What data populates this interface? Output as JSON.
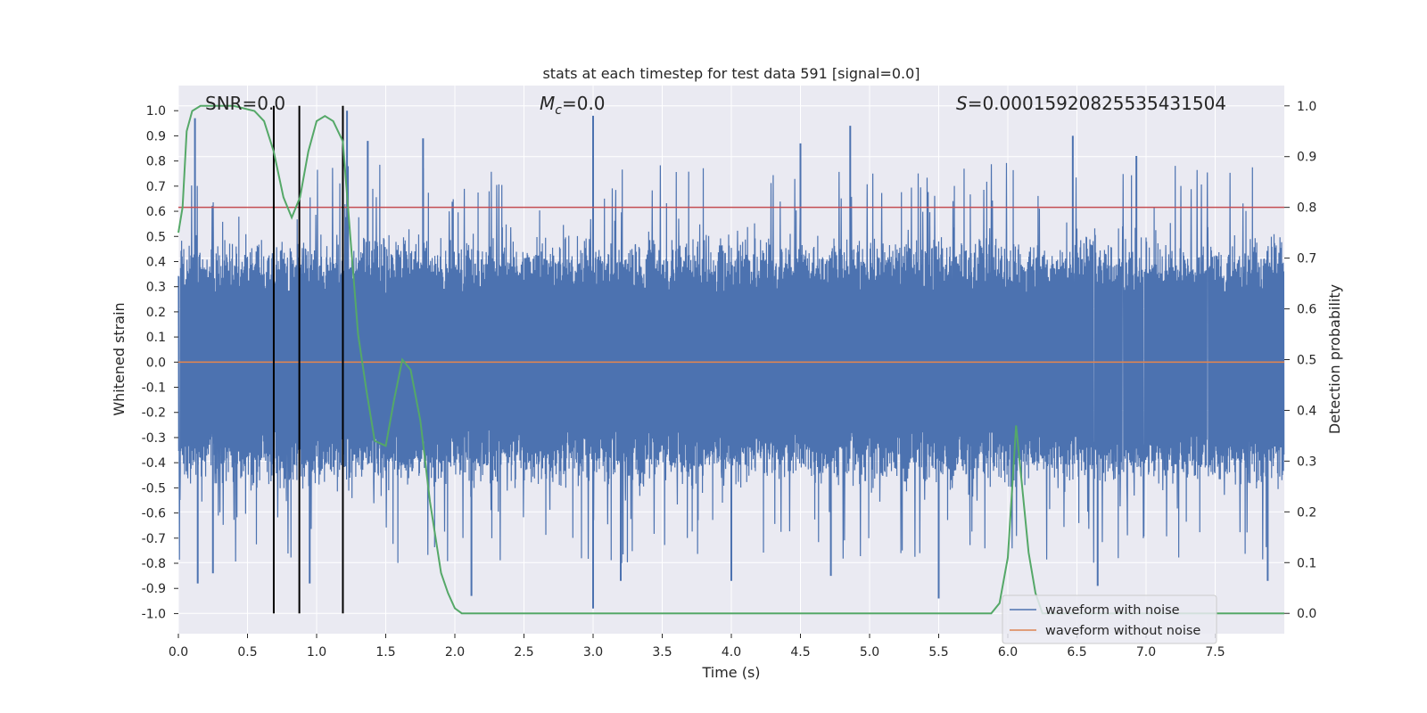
{
  "chart_data": {
    "type": "line",
    "title": "stats at each timestep for test data 591 [signal=0.0]",
    "xlabel": "Time (s)",
    "ylabel_left": "Whitened strain",
    "ylabel_right": "Detection probability",
    "xlim": [
      0.0,
      8.0
    ],
    "ylim_left": [
      -1.08,
      1.1
    ],
    "ylim_right": [
      -0.04,
      1.04
    ],
    "x_ticks": [
      0.0,
      0.5,
      1.0,
      1.5,
      2.0,
      2.5,
      3.0,
      3.5,
      4.0,
      4.5,
      5.0,
      5.5,
      6.0,
      6.5,
      7.0,
      7.5
    ],
    "x_tick_labels": [
      "0.0",
      "0.5",
      "1.0",
      "1.5",
      "2.0",
      "2.5",
      "3.0",
      "3.5",
      "4.0",
      "4.5",
      "5.0",
      "5.5",
      "6.0",
      "6.5",
      "7.0",
      "7.5"
    ],
    "y_left_ticks": [
      1.0,
      0.9,
      0.8,
      0.7,
      0.6,
      0.5,
      0.4,
      0.3,
      0.2,
      0.1,
      0.0,
      -0.1,
      -0.2,
      -0.3,
      -0.4,
      -0.5,
      -0.6,
      -0.7,
      -0.8,
      -0.9,
      -1.0
    ],
    "y_left_tick_labels": [
      "1.0",
      "0.9",
      "0.8",
      "0.7",
      "0.6",
      "0.5",
      "0.4",
      "0.3",
      "0.2",
      "0.1",
      "0.0",
      "-0.1",
      "-0.2",
      "-0.3",
      "-0.4",
      "-0.5",
      "-0.6",
      "-0.7",
      "-0.8",
      "-0.9",
      "-1.0"
    ],
    "y_right_ticks": [
      1.0,
      0.9,
      0.8,
      0.7,
      0.6,
      0.5,
      0.4,
      0.3,
      0.2,
      0.1,
      0.0
    ],
    "y_right_tick_labels": [
      "1.0",
      "0.9",
      "0.8",
      "0.7",
      "0.6",
      "0.5",
      "0.4",
      "0.3",
      "0.2",
      "0.1",
      "0.0"
    ],
    "annotations": {
      "snr": "SNR=0.0",
      "mc_symbol": "M",
      "mc_sub": "c",
      "mc_value": "=0.0",
      "s_symbol": "S",
      "s_value": "=0.00015920825535431504"
    },
    "threshold": {
      "value": 0.8,
      "color": "#c44e52"
    },
    "vertical_markers": [
      0.69,
      0.875,
      1.19
    ],
    "series": [
      {
        "name": "waveform with noise",
        "axis": "left",
        "color": "#4c72b0",
        "sample_rate": 512,
        "typical_abs_range": [
          0.3,
          0.45
        ],
        "peak_spikes": [
          {
            "x": 0.12,
            "y": 0.97
          },
          {
            "x": 1.22,
            "y": 1.0
          },
          {
            "x": 1.37,
            "y": 0.88
          },
          {
            "x": 1.77,
            "y": 0.89
          },
          {
            "x": 3.0,
            "y": 0.98
          },
          {
            "x": 4.5,
            "y": 0.87
          },
          {
            "x": 4.86,
            "y": 0.94
          },
          {
            "x": 6.47,
            "y": 0.9
          },
          {
            "x": 6.93,
            "y": 0.82
          },
          {
            "x": 0.14,
            "y": -0.88
          },
          {
            "x": 0.25,
            "y": -0.84
          },
          {
            "x": 0.95,
            "y": -0.88
          },
          {
            "x": 2.12,
            "y": -0.93
          },
          {
            "x": 3.0,
            "y": -0.98
          },
          {
            "x": 3.2,
            "y": -0.87
          },
          {
            "x": 4.0,
            "y": -0.87
          },
          {
            "x": 4.72,
            "y": -0.85
          },
          {
            "x": 5.5,
            "y": -0.94
          },
          {
            "x": 6.65,
            "y": -0.89
          },
          {
            "x": 7.88,
            "y": -0.87
          }
        ]
      },
      {
        "name": "waveform without noise",
        "axis": "left",
        "color": "#dd8452",
        "x": [
          0.0,
          8.0
        ],
        "y": [
          0.0,
          0.0
        ]
      },
      {
        "name": "detection probability",
        "axis": "right",
        "color": "#55a868",
        "x": [
          0.0,
          0.03,
          0.06,
          0.1,
          0.16,
          0.25,
          0.4,
          0.55,
          0.62,
          0.69,
          0.76,
          0.82,
          0.88,
          0.94,
          1.0,
          1.06,
          1.12,
          1.19,
          1.25,
          1.3,
          1.36,
          1.42,
          1.5,
          1.56,
          1.62,
          1.68,
          1.75,
          1.82,
          1.9,
          1.95,
          2.0,
          2.05,
          2.5,
          3.0,
          4.0,
          5.0,
          5.8,
          5.88,
          5.94,
          6.0,
          6.06,
          6.1,
          6.15,
          6.2,
          6.25,
          6.3,
          7.0,
          8.0
        ],
        "y": [
          0.75,
          0.8,
          0.95,
          0.99,
          1.0,
          1.0,
          1.0,
          0.99,
          0.97,
          0.91,
          0.82,
          0.78,
          0.82,
          0.91,
          0.97,
          0.98,
          0.97,
          0.93,
          0.72,
          0.55,
          0.44,
          0.34,
          0.33,
          0.42,
          0.5,
          0.48,
          0.38,
          0.22,
          0.08,
          0.04,
          0.01,
          0.0,
          0.0,
          0.0,
          0.0,
          0.0,
          0.0,
          0.0,
          0.02,
          0.11,
          0.37,
          0.26,
          0.12,
          0.04,
          0.0,
          0.0,
          0.0,
          0.0
        ]
      }
    ],
    "legend": {
      "location": "lower-right",
      "entries": [
        {
          "label": "waveform with noise",
          "color": "#4c72b0"
        },
        {
          "label": "waveform without noise",
          "color": "#dd8452"
        }
      ]
    },
    "style": {
      "plot_background": "#eaeaf2",
      "grid_color": "#ffffff",
      "marker_color": "#000000"
    }
  }
}
